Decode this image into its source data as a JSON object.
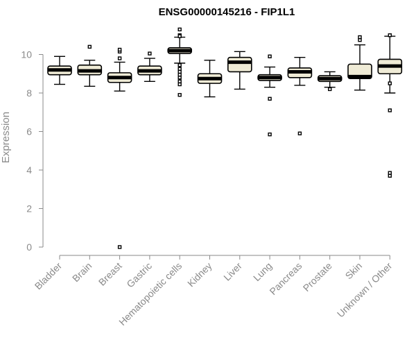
{
  "chart_data": {
    "type": "boxplot",
    "title": "ENSG00000145216 - FIP1L1",
    "xlabel": "",
    "ylabel": "Expression",
    "ylim": [
      0,
      11
    ],
    "yticks": [
      0,
      2,
      4,
      6,
      8,
      10
    ],
    "grid": false,
    "colors": {
      "box_fill": "#efebd6",
      "box_stroke": "#000000",
      "axis": "#8a8a8a"
    },
    "categories": [
      "Bladder",
      "Brain",
      "Breast",
      "Gastric",
      "Hematopoietic cells",
      "Kidney",
      "Liver",
      "Lung",
      "Pancreas",
      "Prostate",
      "Skin",
      "Unknown / Other"
    ],
    "boxes": [
      {
        "category": "Bladder",
        "whisker_low": 8.45,
        "q1": 8.95,
        "median": 9.2,
        "q3": 9.4,
        "whisker_high": 9.9,
        "outliers": []
      },
      {
        "category": "Brain",
        "whisker_low": 8.35,
        "q1": 8.95,
        "median": 9.15,
        "q3": 9.45,
        "whisker_high": 9.7,
        "outliers": [
          10.4
        ]
      },
      {
        "category": "Breast",
        "whisker_low": 8.1,
        "q1": 8.55,
        "median": 8.8,
        "q3": 9.05,
        "whisker_high": 9.6,
        "outliers": [
          9.8,
          10.15,
          10.25,
          0.0
        ]
      },
      {
        "category": "Gastric",
        "whisker_low": 8.6,
        "q1": 8.95,
        "median": 9.15,
        "q3": 9.4,
        "whisker_high": 9.8,
        "outliers": [
          10.05
        ]
      },
      {
        "category": "Hematopoietic cells",
        "whisker_low": 9.55,
        "q1": 10.05,
        "median": 10.2,
        "q3": 10.35,
        "whisker_high": 10.9,
        "outliers": [
          11.3,
          11.0,
          10.95,
          9.45,
          9.25,
          9.1,
          8.95,
          8.8,
          8.6,
          8.45,
          7.9
        ]
      },
      {
        "category": "Kidney",
        "whisker_low": 7.8,
        "q1": 8.5,
        "median": 8.75,
        "q3": 9.0,
        "whisker_high": 9.7,
        "outliers": []
      },
      {
        "category": "Liver",
        "whisker_low": 8.2,
        "q1": 9.1,
        "median": 9.6,
        "q3": 9.85,
        "whisker_high": 10.15,
        "outliers": []
      },
      {
        "category": "Lung",
        "whisker_low": 8.3,
        "q1": 8.65,
        "median": 8.8,
        "q3": 8.95,
        "whisker_high": 9.35,
        "outliers": [
          9.9,
          7.7,
          5.85
        ]
      },
      {
        "category": "Pancreas",
        "whisker_low": 8.4,
        "q1": 8.8,
        "median": 9.1,
        "q3": 9.3,
        "whisker_high": 9.85,
        "outliers": [
          5.9
        ]
      },
      {
        "category": "Prostate",
        "whisker_low": 8.3,
        "q1": 8.6,
        "median": 8.75,
        "q3": 8.9,
        "whisker_high": 9.1,
        "outliers": [
          8.2
        ]
      },
      {
        "category": "Skin",
        "whisker_low": 8.15,
        "q1": 8.75,
        "median": 8.85,
        "q3": 9.5,
        "whisker_high": 10.5,
        "outliers": [
          10.75,
          10.9
        ]
      },
      {
        "category": "Unknown / Other",
        "whisker_low": 8.0,
        "q1": 9.0,
        "median": 9.4,
        "q3": 9.75,
        "whisker_high": 10.95,
        "outliers": [
          11.0,
          8.5,
          7.1,
          3.85,
          3.7
        ]
      }
    ]
  }
}
